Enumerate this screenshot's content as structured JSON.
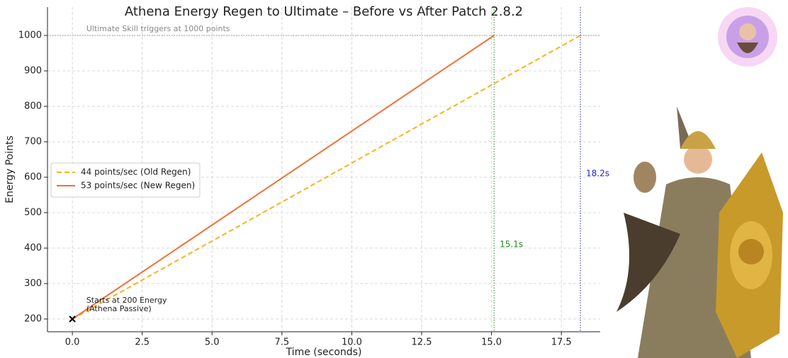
{
  "chart_data": {
    "type": "line",
    "title": "Athena Energy Regen to Ultimate – Before vs After Patch 2.8.2",
    "xlabel": "Time (seconds)",
    "ylabel": "Energy Points",
    "series": [
      {
        "name": "44 points/sec (Old Regen)",
        "color": "#f5b41f",
        "dashed": true,
        "x": [
          0,
          18.18
        ],
        "values": [
          200,
          1000
        ]
      },
      {
        "name": "53 points/sec (New Regen)",
        "color": "#f0703a",
        "dashed": false,
        "x": [
          0,
          15.09
        ],
        "values": [
          200,
          1000
        ]
      }
    ],
    "vlines": [
      {
        "value": 15.09,
        "label": "15.1s",
        "color": "#1a8a1a"
      },
      {
        "value": 18.18,
        "label": "18.2s",
        "color": "#2222dd"
      }
    ],
    "hline": {
      "value": 1000,
      "label": "Ultimate Skill triggers at 1000 points"
    },
    "start_marker": {
      "x": 0,
      "y": 200,
      "label": [
        "Starts at 200 Energy",
        "(Athena Passive)"
      ]
    },
    "xlim": [
      -0.89,
      18.89
    ],
    "ylim": [
      164,
      1080
    ],
    "xticks": [
      {
        "value": 0,
        "label": "0.0"
      },
      2.5,
      {
        "value": 5,
        "label": "5.0"
      },
      7.5,
      {
        "value": 10,
        "label": "10.0"
      },
      12.5,
      {
        "value": 15,
        "label": "15.0"
      },
      17.5
    ],
    "yticks": [
      200,
      300,
      400,
      500,
      600,
      700,
      800,
      900,
      1000
    ],
    "grid": true,
    "legend": "center left"
  }
}
